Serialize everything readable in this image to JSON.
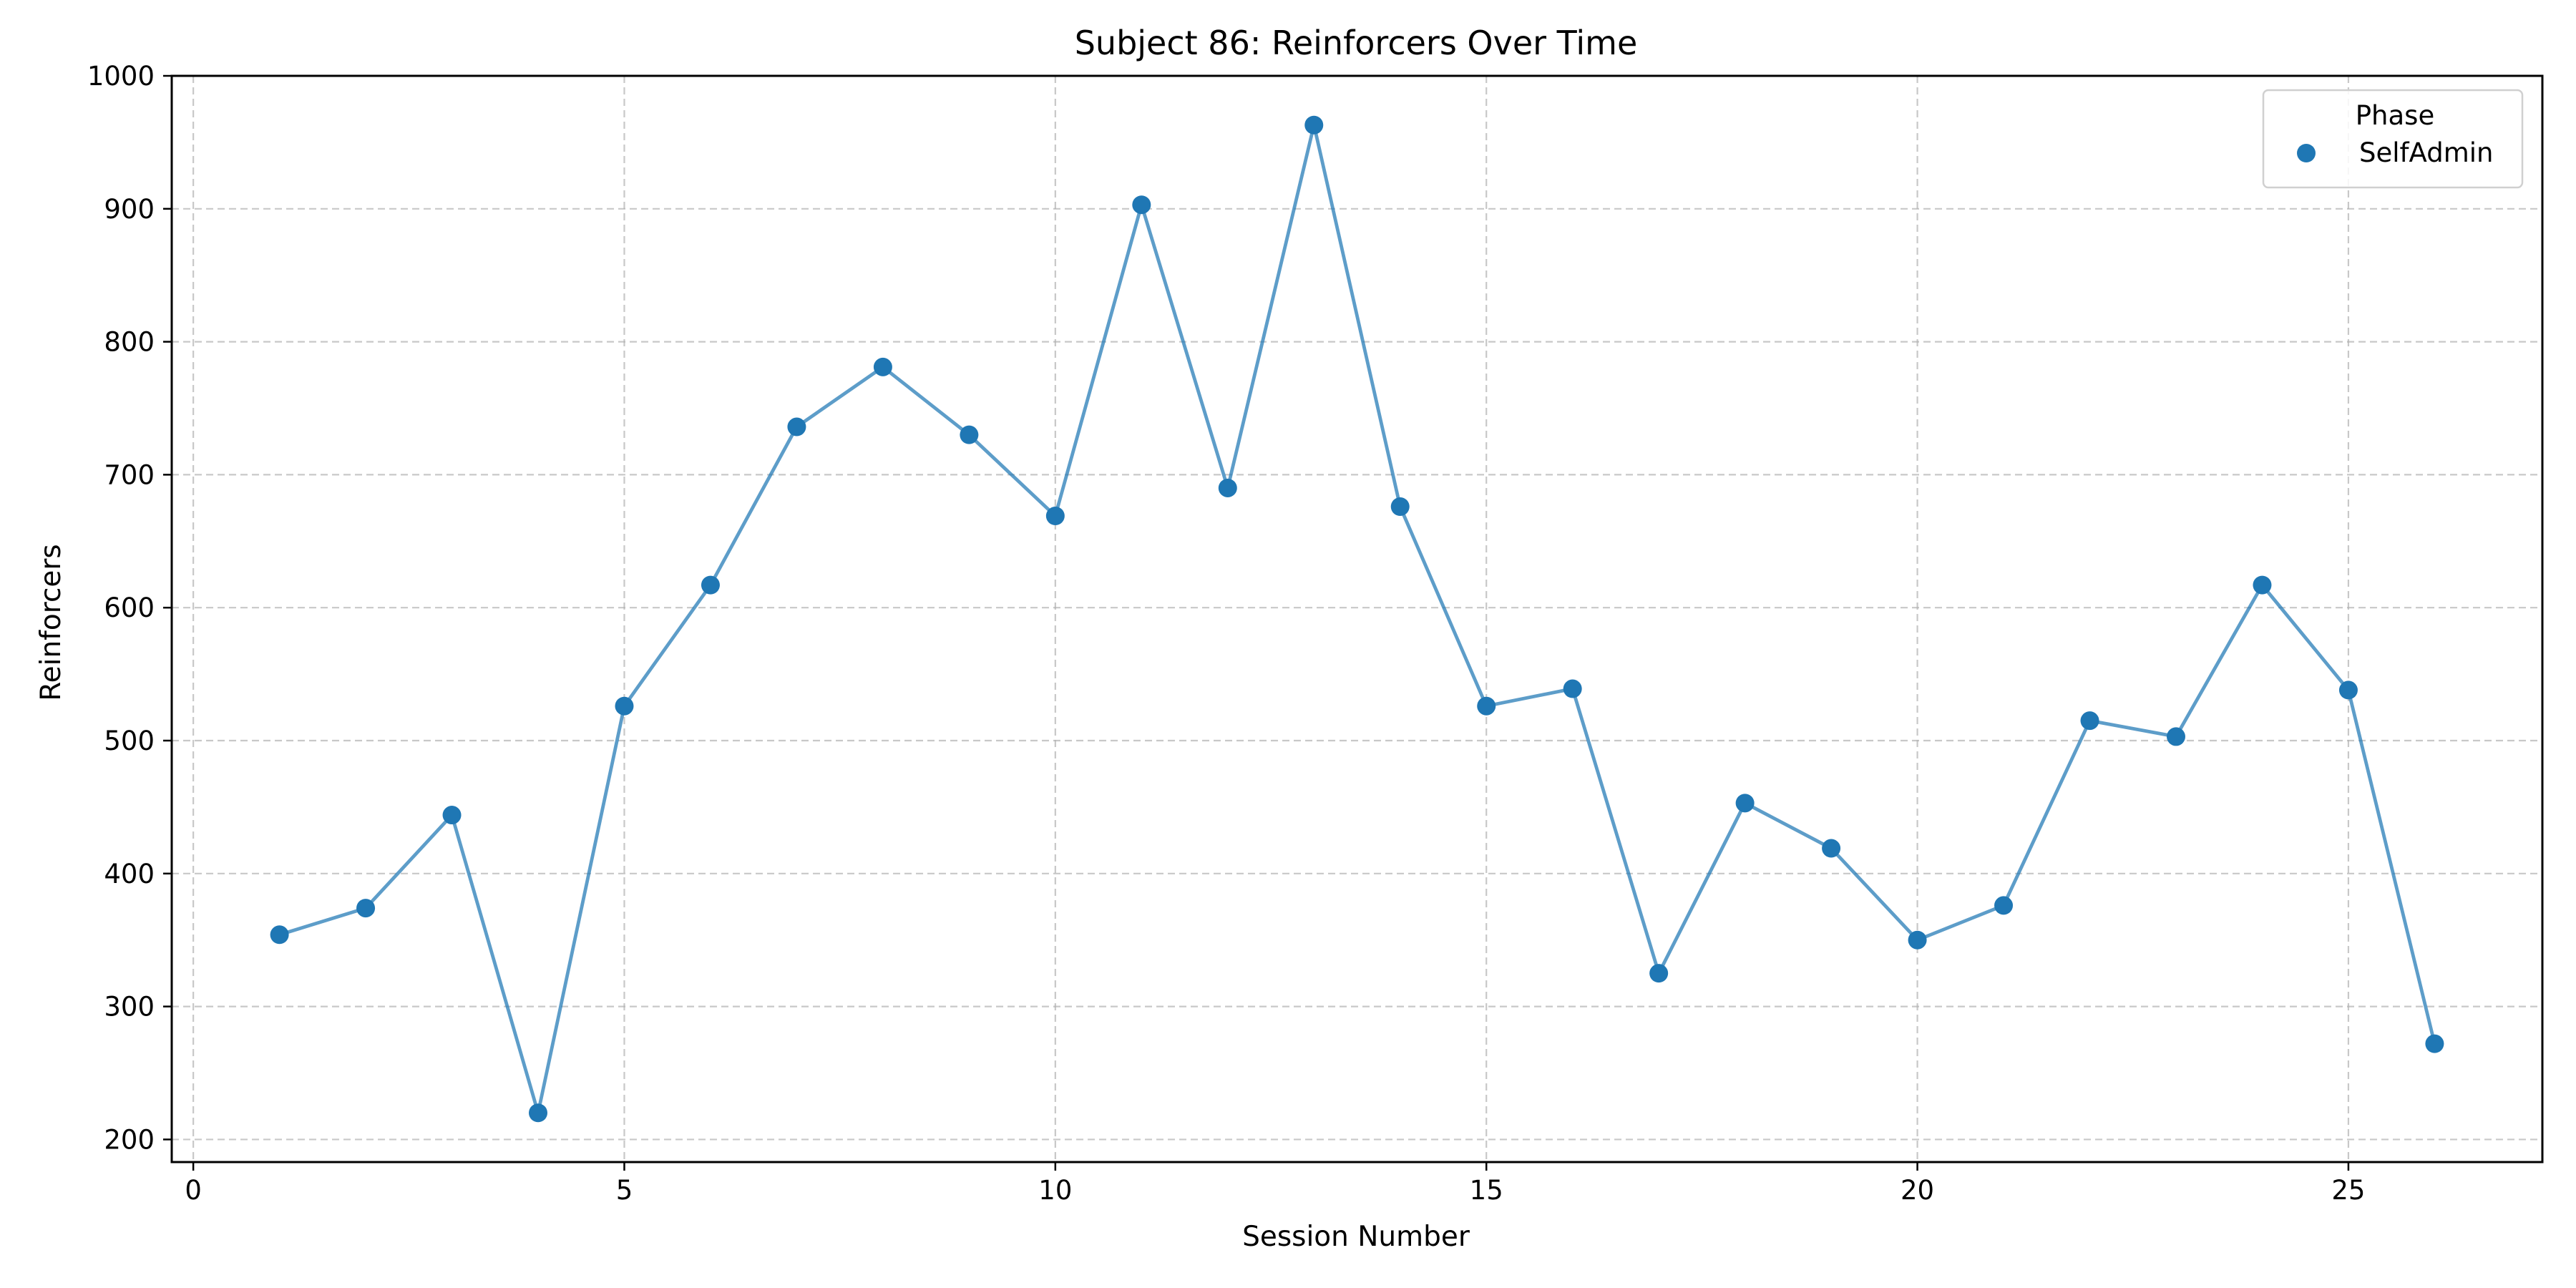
{
  "chart_data": {
    "type": "line",
    "title": "Subject 86: Reinforcers Over Time",
    "xlabel": "Session Number",
    "ylabel": "Reinforcers",
    "xlim": [
      -0.25,
      27.25
    ],
    "ylim": [
      183,
      1000
    ],
    "xticks": [
      0,
      5,
      10,
      15,
      20,
      25
    ],
    "yticks": [
      200,
      300,
      400,
      500,
      600,
      700,
      800,
      900,
      1000
    ],
    "grid": true,
    "grid_style": "dashed",
    "legend": {
      "title": "Phase",
      "placement": "top-right",
      "entries": [
        "SelfAdmin"
      ]
    },
    "series": [
      {
        "name": "SelfAdmin",
        "color": "#1f77b4",
        "marker": "circle",
        "x": [
          1,
          2,
          3,
          4,
          5,
          6,
          7,
          8,
          9,
          10,
          11,
          12,
          13,
          14,
          15,
          16,
          17,
          18,
          19,
          20,
          21,
          22,
          23,
          24,
          25,
          26
        ],
        "y": [
          354,
          374,
          444,
          220,
          526,
          617,
          736,
          781,
          730,
          669,
          903,
          690,
          963,
          676,
          526,
          539,
          325,
          453,
          419,
          350,
          376,
          515,
          503,
          617,
          538,
          272
        ]
      }
    ]
  }
}
